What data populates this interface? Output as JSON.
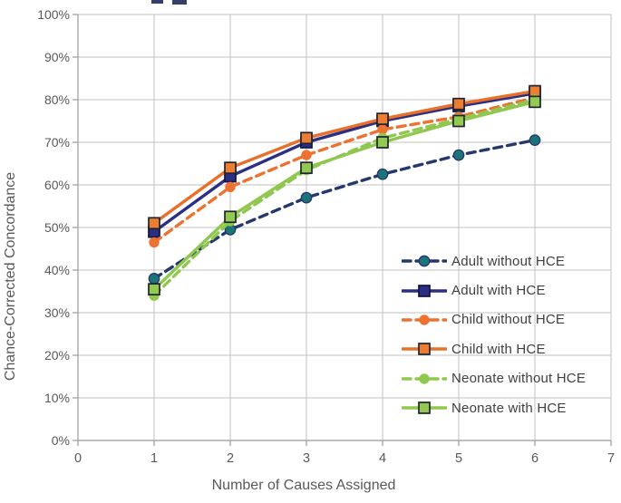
{
  "chart_data": {
    "type": "line",
    "title": "",
    "xlabel": "Number of Causes Assigned",
    "ylabel": "Chance-Corrected Concordance",
    "x": [
      1,
      2,
      3,
      4,
      5,
      6
    ],
    "xlim": [
      0,
      7
    ],
    "ylim": [
      0,
      100
    ],
    "x_ticks": [
      "0",
      "1",
      "2",
      "3",
      "4",
      "5",
      "6",
      "7"
    ],
    "y_ticks": [
      "0%",
      "10%",
      "20%",
      "30%",
      "40%",
      "50%",
      "60%",
      "70%",
      "80%",
      "90%",
      "100%"
    ],
    "grid": true,
    "legend_position": "inside-lower-right",
    "series": [
      {
        "name": "Adult without HCE",
        "line_style": "dashed",
        "marker": "circle",
        "line_color": "#24386E",
        "marker_fill": "#1B7478",
        "marker_stroke": "#24386E",
        "values": [
          38,
          49.5,
          57,
          62.5,
          67,
          70.5
        ]
      },
      {
        "name": "Adult with HCE",
        "line_style": "solid",
        "marker": "square",
        "line_color": "#2B2F84",
        "marker_fill": "#2B2F84",
        "marker_stroke": "#12153F",
        "values": [
          49,
          62,
          70,
          75,
          78.5,
          81.5
        ]
      },
      {
        "name": "Child without HCE",
        "line_style": "dashed",
        "marker": "circle",
        "line_color": "#ED7131",
        "marker_fill": "#ED7131",
        "marker_stroke": "",
        "values": [
          46.5,
          59.5,
          67,
          73,
          76,
          80.5
        ]
      },
      {
        "name": "Child with HCE",
        "line_style": "solid",
        "marker": "square",
        "line_color": "#E8702A",
        "marker_fill": "#ED7D31",
        "marker_stroke": "#1F2430",
        "values": [
          51,
          64,
          71,
          75.5,
          79,
          82
        ]
      },
      {
        "name": "Neonate without HCE",
        "line_style": "dashed",
        "marker": "circle",
        "line_color": "#8FC74F",
        "marker_fill": "#8FC74F",
        "marker_stroke": "",
        "values": [
          34,
          51.5,
          63.5,
          71,
          75.5,
          80
        ]
      },
      {
        "name": "Neonate with HCE",
        "line_style": "solid",
        "marker": "square",
        "line_color": "#8FC74F",
        "marker_fill": "#92C951",
        "marker_stroke": "#1F2430",
        "values": [
          35.5,
          52.5,
          64,
          70,
          75,
          79.5
        ]
      }
    ],
    "colors": {
      "gridline": "#C2C2C2",
      "axis": "#9B9B9B",
      "tick_label": "#595959",
      "axis_title": "#595959",
      "legend_text": "#3F3F3F",
      "background": "#FFFFFF"
    }
  }
}
